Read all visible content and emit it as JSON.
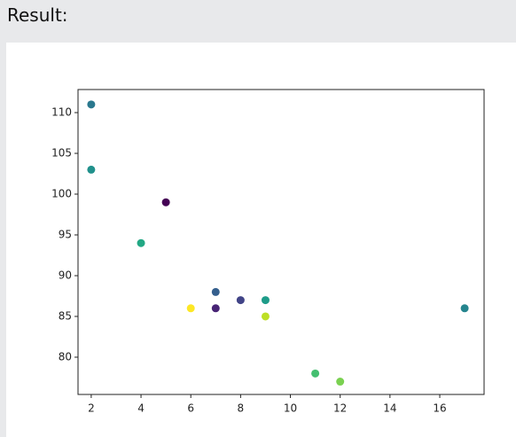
{
  "page_title": "Result:",
  "chart_data": {
    "type": "scatter",
    "x": [
      5,
      7,
      8,
      7,
      2,
      17,
      2,
      9,
      4,
      11,
      12,
      9,
      6
    ],
    "values": [
      99,
      86,
      87,
      88,
      111,
      86,
      103,
      87,
      94,
      78,
      77,
      85,
      86
    ],
    "colors": [
      "#440154",
      "#482475",
      "#414487",
      "#355f8d",
      "#2a788e",
      "#25858e",
      "#21918c",
      "#1e9c89",
      "#22a884",
      "#44bf70",
      "#7ad151",
      "#bddf26",
      "#fde725"
    ],
    "xlim": [
      1.47,
      17.78
    ],
    "ylim": [
      75.43,
      112.83
    ],
    "xticks": [
      2,
      4,
      6,
      8,
      10,
      12,
      14,
      16
    ],
    "yticks": [
      80,
      85,
      90,
      95,
      100,
      105,
      110
    ],
    "grid": false
  }
}
